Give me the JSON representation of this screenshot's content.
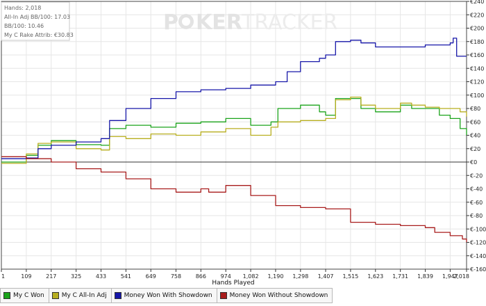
{
  "watermark": {
    "part1": "P",
    "part2": "KER",
    "part3": "TRACKER"
  },
  "stats": {
    "hands": "Hands: 2,018",
    "allin_adj": "All-In Adj BB/100: 17.03",
    "bb100": "BB/100: 10.46",
    "rake": "My C Rake Attrib: €30.83"
  },
  "chart_data": {
    "type": "line",
    "xlabel": "Hands Played",
    "ylabel": "",
    "xlim": [
      1,
      2018
    ],
    "ylim": [
      -160,
      240
    ],
    "x_ticks": [
      "1",
      "109",
      "217",
      "325",
      "433",
      "541",
      "649",
      "758",
      "866",
      "974",
      "1,082",
      "1,190",
      "1,298",
      "1,407",
      "1,515",
      "1,623",
      "1,731",
      "1,839",
      "1,947",
      "2,018"
    ],
    "y_ticks": [
      "€240",
      "€220",
      "€200",
      "€180",
      "€160",
      "€140",
      "€120",
      "€100",
      "€80",
      "€60",
      "€40",
      "€20",
      "€0",
      "€-20",
      "€-40",
      "€-60",
      "€-80",
      "€-100",
      "€-120",
      "€-140",
      "€-160"
    ],
    "y_tick_values": [
      240,
      220,
      200,
      180,
      160,
      140,
      120,
      100,
      80,
      60,
      40,
      20,
      0,
      -20,
      -40,
      -60,
      -80,
      -100,
      -120,
      -140,
      -160
    ],
    "grid": true,
    "legend_position": "bottom",
    "series": [
      {
        "name": "My C Won",
        "color": "#1aa31a",
        "points": [
          [
            1,
            0
          ],
          [
            109,
            10
          ],
          [
            160,
            25
          ],
          [
            217,
            32
          ],
          [
            325,
            26
          ],
          [
            433,
            25
          ],
          [
            470,
            50
          ],
          [
            541,
            55
          ],
          [
            649,
            52
          ],
          [
            758,
            58
          ],
          [
            866,
            60
          ],
          [
            974,
            65
          ],
          [
            1082,
            55
          ],
          [
            1170,
            60
          ],
          [
            1200,
            80
          ],
          [
            1298,
            85
          ],
          [
            1380,
            75
          ],
          [
            1407,
            70
          ],
          [
            1450,
            95
          ],
          [
            1515,
            95
          ],
          [
            1560,
            80
          ],
          [
            1623,
            75
          ],
          [
            1680,
            75
          ],
          [
            1731,
            85
          ],
          [
            1780,
            80
          ],
          [
            1839,
            80
          ],
          [
            1900,
            70
          ],
          [
            1947,
            65
          ],
          [
            1990,
            50
          ],
          [
            2018,
            40
          ]
        ]
      },
      {
        "name": "My C All-In Adj",
        "color": "#b7ae1f",
        "points": [
          [
            1,
            -2
          ],
          [
            109,
            12
          ],
          [
            160,
            28
          ],
          [
            217,
            30
          ],
          [
            325,
            20
          ],
          [
            433,
            18
          ],
          [
            470,
            38
          ],
          [
            541,
            35
          ],
          [
            649,
            42
          ],
          [
            758,
            40
          ],
          [
            866,
            45
          ],
          [
            974,
            50
          ],
          [
            1082,
            40
          ],
          [
            1170,
            52
          ],
          [
            1200,
            60
          ],
          [
            1298,
            62
          ],
          [
            1407,
            65
          ],
          [
            1450,
            93
          ],
          [
            1515,
            97
          ],
          [
            1560,
            85
          ],
          [
            1623,
            80
          ],
          [
            1680,
            80
          ],
          [
            1731,
            88
          ],
          [
            1780,
            85
          ],
          [
            1839,
            82
          ],
          [
            1900,
            80
          ],
          [
            1947,
            80
          ],
          [
            1990,
            75
          ],
          [
            2018,
            68
          ]
        ]
      },
      {
        "name": "Money Won With Showdown",
        "color": "#1616a8",
        "points": [
          [
            1,
            5
          ],
          [
            109,
            6
          ],
          [
            160,
            20
          ],
          [
            217,
            25
          ],
          [
            325,
            30
          ],
          [
            433,
            35
          ],
          [
            470,
            62
          ],
          [
            541,
            80
          ],
          [
            649,
            95
          ],
          [
            758,
            105
          ],
          [
            866,
            108
          ],
          [
            974,
            110
          ],
          [
            1082,
            115
          ],
          [
            1190,
            120
          ],
          [
            1240,
            135
          ],
          [
            1298,
            150
          ],
          [
            1380,
            155
          ],
          [
            1407,
            160
          ],
          [
            1450,
            180
          ],
          [
            1515,
            182
          ],
          [
            1560,
            178
          ],
          [
            1623,
            172
          ],
          [
            1731,
            172
          ],
          [
            1839,
            175
          ],
          [
            1947,
            178
          ],
          [
            1960,
            185
          ],
          [
            1975,
            158
          ],
          [
            2018,
            158
          ]
        ]
      },
      {
        "name": "Money Won Without Showdown",
        "color": "#a81c1c",
        "points": [
          [
            1,
            8
          ],
          [
            109,
            5
          ],
          [
            160,
            5
          ],
          [
            217,
            0
          ],
          [
            325,
            -10
          ],
          [
            433,
            -15
          ],
          [
            541,
            -25
          ],
          [
            649,
            -40
          ],
          [
            758,
            -45
          ],
          [
            866,
            -40
          ],
          [
            900,
            -45
          ],
          [
            974,
            -35
          ],
          [
            1082,
            -50
          ],
          [
            1190,
            -65
          ],
          [
            1298,
            -68
          ],
          [
            1407,
            -70
          ],
          [
            1515,
            -90
          ],
          [
            1623,
            -93
          ],
          [
            1731,
            -95
          ],
          [
            1839,
            -98
          ],
          [
            1880,
            -105
          ],
          [
            1947,
            -110
          ],
          [
            2000,
            -115
          ],
          [
            2018,
            -120
          ]
        ]
      }
    ]
  }
}
